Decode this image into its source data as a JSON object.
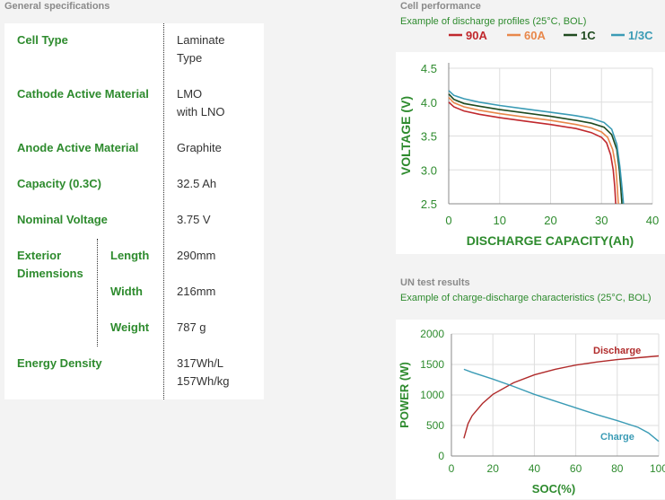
{
  "specs": {
    "title": "General specifications",
    "rows": [
      {
        "label": [
          "Cell Type"
        ],
        "value": [
          "Laminate",
          "Type"
        ]
      },
      {
        "label": [
          "Cathode Active Material"
        ],
        "value": [
          "LMO",
          "with LNO"
        ]
      },
      {
        "label": [
          "Anode Active Material"
        ],
        "value": [
          "Graphite"
        ]
      },
      {
        "label": [
          "Capacity (0.3C)"
        ],
        "value": [
          "32.5 Ah"
        ]
      },
      {
        "label": [
          "Nominal Voltage"
        ],
        "value": [
          "3.75 V"
        ]
      }
    ],
    "exterior": {
      "label": [
        "Exterior",
        "Dimensions"
      ],
      "items": [
        {
          "label": "Length",
          "value": "290mm"
        },
        {
          "label": "Width",
          "value": "216mm"
        },
        {
          "label": "Weight",
          "value": "787 g"
        }
      ]
    },
    "energy": {
      "label": [
        "Energy Density"
      ],
      "value": [
        "317Wh/L",
        "157Wh/kg"
      ]
    }
  },
  "cell_performance": {
    "title": "Cell performance",
    "subtitle": "Example of discharge profiles (25°C, BOL)"
  },
  "un_test": {
    "title": "UN test results",
    "subtitle": "Example of charge-discharge characteristics (25°C, BOL)"
  },
  "colors": {
    "green": "#2e8b2e",
    "s90A": "#c0282d",
    "s60A": "#e8874a",
    "s1C": "#1f4a1f",
    "s13C": "#3a9bb5",
    "discharge": "#b02a2a",
    "charge": "#3a9bb5"
  },
  "chart_data": [
    {
      "type": "line",
      "xlabel": "DISCHARGE CAPACITY(Ah)",
      "ylabel": "VOLTAGE (V)",
      "xlim": [
        0,
        40
      ],
      "ylim": [
        2.5,
        4.5
      ],
      "xticks": [
        "0",
        "10",
        "20",
        "30",
        "40"
      ],
      "yticks": [
        "2.5",
        "3.0",
        "3.5",
        "4.0",
        "4.5"
      ],
      "grid": true,
      "legend": "top",
      "series": [
        {
          "name": "90A",
          "color": "#c0282d",
          "x": [
            0,
            1,
            3,
            6,
            10,
            15,
            20,
            25,
            28,
            30,
            31,
            31.8,
            32.3,
            32.6,
            32.8
          ],
          "y": [
            4.0,
            3.93,
            3.87,
            3.82,
            3.77,
            3.72,
            3.67,
            3.61,
            3.55,
            3.48,
            3.4,
            3.22,
            3.0,
            2.75,
            2.5
          ]
        },
        {
          "name": "60A",
          "color": "#e8874a",
          "x": [
            0,
            1,
            3,
            6,
            10,
            15,
            20,
            25,
            28,
            30,
            31.2,
            32.2,
            32.8,
            33.1,
            33.3
          ],
          "y": [
            4.07,
            3.99,
            3.93,
            3.88,
            3.83,
            3.78,
            3.73,
            3.67,
            3.62,
            3.56,
            3.48,
            3.3,
            3.05,
            2.75,
            2.5
          ]
        },
        {
          "name": "1C",
          "color": "#1f4a1f",
          "x": [
            0,
            1,
            3,
            6,
            10,
            15,
            20,
            25,
            28,
            30.5,
            32,
            33,
            33.5,
            33.8,
            34.0
          ],
          "y": [
            4.12,
            4.04,
            3.98,
            3.94,
            3.89,
            3.84,
            3.79,
            3.73,
            3.69,
            3.63,
            3.52,
            3.3,
            3.0,
            2.72,
            2.5
          ]
        },
        {
          "name": "1/3C",
          "color": "#3a9bb5",
          "x": [
            0,
            1,
            3,
            6,
            10,
            15,
            20,
            25,
            28,
            30.5,
            32,
            33,
            33.6,
            34.0,
            34.3
          ],
          "y": [
            4.17,
            4.1,
            4.05,
            4.0,
            3.95,
            3.9,
            3.85,
            3.8,
            3.76,
            3.7,
            3.6,
            3.38,
            3.05,
            2.75,
            2.5
          ]
        }
      ]
    },
    {
      "type": "line",
      "xlabel": "SOC(%)",
      "ylabel": "POWER (W)",
      "xlim": [
        0,
        100
      ],
      "ylim": [
        0,
        2000
      ],
      "xticks": [
        "0",
        "20",
        "40",
        "60",
        "80",
        "100"
      ],
      "yticks": [
        "0",
        "500",
        "1000",
        "1500",
        "2000"
      ],
      "grid": true,
      "series": [
        {
          "name": "Discharge",
          "color": "#b02a2a",
          "x": [
            6,
            8,
            10,
            15,
            20,
            30,
            40,
            50,
            60,
            70,
            80,
            90,
            100
          ],
          "y": [
            290,
            530,
            660,
            860,
            1010,
            1200,
            1330,
            1420,
            1490,
            1540,
            1580,
            1610,
            1640
          ]
        },
        {
          "name": "Charge",
          "color": "#3a9bb5",
          "x": [
            6,
            10,
            20,
            30,
            40,
            50,
            60,
            70,
            80,
            90,
            95,
            100
          ],
          "y": [
            1420,
            1370,
            1260,
            1140,
            1010,
            900,
            790,
            680,
            580,
            470,
            380,
            240
          ]
        }
      ]
    }
  ]
}
